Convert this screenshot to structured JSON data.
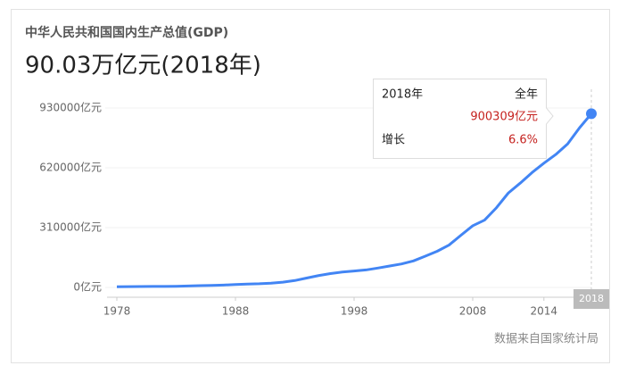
{
  "chart_data": {
    "type": "line",
    "title": "中华人民共和国国内生产总值(GDP)",
    "subtitle": "90.03万亿元(2018年)",
    "source": "数据来自国家统计局",
    "color": "#4285f4",
    "x": [
      1978,
      1979,
      1980,
      1981,
      1982,
      1983,
      1984,
      1985,
      1986,
      1987,
      1988,
      1989,
      1990,
      1991,
      1992,
      1993,
      1994,
      1995,
      1996,
      1997,
      1998,
      1999,
      2000,
      2001,
      2002,
      2003,
      2004,
      2005,
      2006,
      2007,
      2008,
      2009,
      2010,
      2011,
      2012,
      2013,
      2014,
      2015,
      2016,
      2017,
      2018
    ],
    "values": [
      3679,
      4101,
      4588,
      4936,
      5373,
      6021,
      7279,
      9099,
      10376,
      12175,
      15180,
      17180,
      18873,
      22006,
      27195,
      35673,
      48638,
      61340,
      71814,
      79715,
      85196,
      90564,
      100280,
      110863,
      121717,
      137422,
      161840,
      187319,
      219439,
      270232,
      319516,
      349081,
      413030,
      489301,
      540367,
      595244,
      643974,
      689052,
      743586,
      827122,
      900309
    ],
    "xlim": [
      1978,
      2018
    ],
    "xticks": [
      1978,
      1988,
      1998,
      2008,
      2014,
      2018
    ],
    "ylim": [
      0,
      930000
    ],
    "yticks": [
      {
        "value": 0,
        "label": "0亿元"
      },
      {
        "value": 310000,
        "label": "310000亿元"
      },
      {
        "value": 620000,
        "label": "620000亿元"
      },
      {
        "value": 930000,
        "label": "930000亿元"
      }
    ],
    "grid": true,
    "tooltip": {
      "title": "2018年",
      "period": "全年",
      "value_label": "900309亿元",
      "growth_name": "增长",
      "growth": "6.6%"
    }
  }
}
